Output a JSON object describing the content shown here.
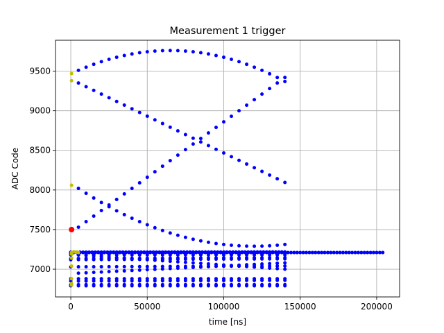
{
  "chart_data": {
    "type": "scatter",
    "title": "Measurement 1 trigger",
    "xlabel": "time [ns]",
    "ylabel": "ADC Code",
    "xlim": [
      -10000,
      215000
    ],
    "ylim": [
      6650,
      9890
    ],
    "grid": true,
    "x_ticks": [
      0,
      50000,
      100000,
      150000,
      200000
    ],
    "x_tick_labels": [
      "0",
      "50000",
      "100000",
      "150000",
      "200000"
    ],
    "y_ticks": [
      7000,
      7500,
      8000,
      8500,
      9000,
      9500
    ],
    "y_tick_labels": [
      "7000",
      "7500",
      "8000",
      "8500",
      "9000",
      "9500"
    ],
    "series": [
      {
        "color": "#0000ff",
        "marker_size": 5,
        "traces": [
          {
            "kind": "flat",
            "x_start": 0,
            "x_end": 204000,
            "step": 2000,
            "y_start": 7210,
            "y_end": 7210
          },
          {
            "kind": "flat",
            "x_start": 0,
            "x_end": 140000,
            "step": 2000,
            "y_start": 7215,
            "y_end": 7218
          },
          {
            "kind": "flat",
            "x_start": 0,
            "x_end": 140000,
            "step": 5000,
            "y_start": 7195,
            "y_end": 7195
          },
          {
            "kind": "flat",
            "x_start": 0,
            "x_end": 140000,
            "step": 5000,
            "y_start": 7180,
            "y_end": 7180
          },
          {
            "kind": "flat",
            "x_start": 0,
            "x_end": 140000,
            "step": 5000,
            "y_start": 7135,
            "y_end": 7145
          },
          {
            "kind": "flat",
            "x_start": 0,
            "x_end": 140000,
            "step": 5000,
            "y_start": 7120,
            "y_end": 7130
          },
          {
            "kind": "flat",
            "x_start": 0,
            "x_end": 140000,
            "step": 5000,
            "y_start": 7030,
            "y_end": 7040
          },
          {
            "kind": "flat",
            "x_start": 0,
            "x_end": 140000,
            "step": 5000,
            "y_start": 6880,
            "y_end": 6880
          },
          {
            "kind": "flat",
            "x_start": 0,
            "x_end": 140000,
            "step": 5000,
            "y_start": 6850,
            "y_end": 6860
          },
          {
            "kind": "flat",
            "x_start": 0,
            "x_end": 140000,
            "step": 5000,
            "y_start": 6805,
            "y_end": 6805
          },
          {
            "kind": "flat",
            "x_start": 0,
            "x_end": 140000,
            "step": 5000,
            "y_start": 6790,
            "y_end": 6790
          },
          {
            "kind": "line",
            "x_start": 5000,
            "x_end": 140000,
            "step": 5000,
            "y_start": 9350,
            "y_end": 8095
          },
          {
            "kind": "line",
            "x_start": 5000,
            "x_end": 140000,
            "step": 5000,
            "y_start": 7530,
            "y_end": 9420
          },
          {
            "kind": "parabola",
            "x_start": 5000,
            "x_end": 140000,
            "step": 5000,
            "x_vertex": 65000,
            "y_vertex": 9760,
            "y_start": 9510
          },
          {
            "kind": "parabola",
            "x_start": 5000,
            "x_end": 140000,
            "step": 5000,
            "x_vertex": 120000,
            "y_vertex": 7290,
            "y_start": 8020
          },
          {
            "kind": "line",
            "x_start": 5000,
            "x_end": 140000,
            "step": 5000,
            "y_start": 7180,
            "y_end": 7000
          },
          {
            "kind": "line",
            "x_start": 5000,
            "x_end": 140000,
            "step": 5000,
            "y_start": 6950,
            "y_end": 7080
          }
        ]
      },
      {
        "color": "#bfbf00",
        "marker_size": 5,
        "points": [
          [
            500,
            9470
          ],
          [
            500,
            9380
          ],
          [
            500,
            8060
          ],
          [
            500,
            7210
          ],
          [
            500,
            7190
          ],
          [
            500,
            7140
          ],
          [
            500,
            7040
          ],
          [
            500,
            6880
          ],
          [
            500,
            6820
          ],
          [
            500,
            6800
          ],
          [
            2000,
            7220
          ],
          [
            3000,
            7215
          ],
          [
            4000,
            7215
          ],
          [
            5000,
            7210
          ]
        ]
      },
      {
        "color": "#ff0000",
        "marker_size": 8,
        "points": [
          [
            500,
            7500
          ]
        ]
      }
    ]
  }
}
